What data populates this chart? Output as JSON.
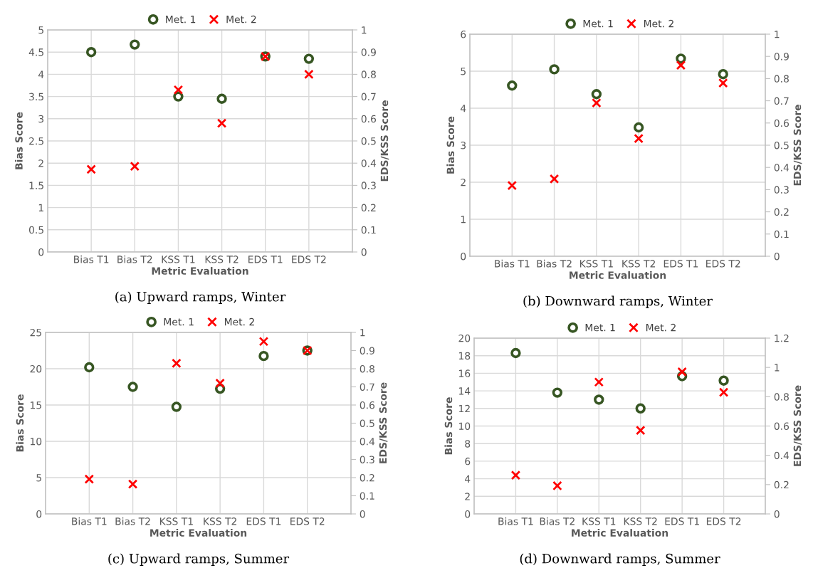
{
  "chart_data": [
    {
      "type": "scatter",
      "categories": [
        "Bias T1",
        "Bias T2",
        "KSS T1",
        "KSS T2",
        "EDS T1",
        "EDS T2"
      ],
      "xlabel": "Metric Evaluation",
      "ylabel": "Bias Score",
      "y2label": "EDS/KSS Score",
      "ylim": [
        0,
        5
      ],
      "yticks": [
        0,
        0.5,
        1,
        1.5,
        2,
        2.5,
        3,
        3.5,
        4,
        4.5,
        5
      ],
      "y2lim": [
        0,
        1
      ],
      "y2ticks": [
        0,
        0.1,
        0.2,
        0.3,
        0.4,
        0.5,
        0.6,
        0.7,
        0.8,
        0.9,
        1
      ],
      "grid": true,
      "legend": "top",
      "annotations": [
        "(a) Upward ramps, Winter"
      ],
      "series": [
        {
          "name": "Met. 1",
          "color": "#375623",
          "marker": "circle",
          "values": [
            4.5,
            4.67,
            null,
            null,
            null,
            null
          ]
        },
        {
          "name": "Met. 2",
          "color": "#ff0000",
          "marker": "cross",
          "values": [
            1.86,
            1.93,
            null,
            null,
            null,
            null
          ]
        },
        {
          "color": "#375623",
          "marker": "circle",
          "axis": "y2",
          "values": [
            null,
            null,
            0.7,
            0.69,
            0.88,
            0.87
          ]
        },
        {
          "color": "#ff0000",
          "marker": "cross",
          "axis": "y2",
          "values": [
            null,
            null,
            0.73,
            0.58,
            0.88,
            0.8
          ]
        }
      ]
    },
    {
      "type": "scatter",
      "categories": [
        "Bias T1",
        "Bias T2",
        "KSS T1",
        "KSS T2",
        "EDS T1",
        "EDS T2"
      ],
      "xlabel": "Metric Evaluation",
      "ylabel": "Bias Score",
      "y2label": "EDS/KSS Score",
      "ylim": [
        0,
        6
      ],
      "yticks": [
        0,
        1,
        2,
        3,
        4,
        5,
        6
      ],
      "y2lim": [
        0,
        1
      ],
      "y2ticks": [
        0,
        0.1,
        0.2,
        0.3,
        0.4,
        0.5,
        0.6,
        0.7,
        0.8,
        0.9,
        1
      ],
      "grid": true,
      "legend": "top",
      "annotations": [
        "(b) Downward ramps, Winter"
      ],
      "series": [
        {
          "name": "Met. 1",
          "color": "#375623",
          "marker": "circle",
          "values": [
            4.61,
            5.05,
            null,
            null,
            null,
            null
          ]
        },
        {
          "name": "Met. 2",
          "color": "#ff0000",
          "marker": "cross",
          "values": [
            1.91,
            2.09,
            null,
            null,
            null,
            null
          ]
        },
        {
          "color": "#375623",
          "marker": "circle",
          "axis": "y2",
          "values": [
            null,
            null,
            0.73,
            0.58,
            0.89,
            0.82
          ]
        },
        {
          "color": "#ff0000",
          "marker": "cross",
          "axis": "y2",
          "values": [
            null,
            null,
            0.69,
            0.53,
            0.86,
            0.78
          ]
        }
      ]
    },
    {
      "type": "scatter",
      "categories": [
        "Bias T1",
        "Bias T2",
        "KSS T1",
        "KSS T2",
        "EDS T1",
        "EDS T2"
      ],
      "xlabel": "Metric Evaluation",
      "ylabel": "Bias Score",
      "y2label": "EDS/KSS Score",
      "ylim": [
        0,
        25
      ],
      "yticks": [
        0,
        5,
        10,
        15,
        20,
        25
      ],
      "y2lim": [
        0,
        1
      ],
      "y2ticks": [
        0,
        0.1,
        0.2,
        0.3,
        0.4,
        0.5,
        0.6,
        0.7,
        0.8,
        0.9,
        1
      ],
      "grid": true,
      "legend": "top",
      "annotations": [
        "(c) Upward ramps, Summer"
      ],
      "series": [
        {
          "name": "Met. 1",
          "color": "#375623",
          "marker": "circle",
          "values": [
            20.2,
            17.5,
            null,
            null,
            null,
            null
          ]
        },
        {
          "name": "Met. 2",
          "color": "#ff0000",
          "marker": "cross",
          "values": [
            4.8,
            4.1,
            null,
            null,
            null,
            null
          ]
        },
        {
          "color": "#375623",
          "marker": "circle",
          "axis": "y2",
          "values": [
            null,
            null,
            0.59,
            0.69,
            0.87,
            0.9
          ]
        },
        {
          "color": "#ff0000",
          "marker": "cross",
          "axis": "y2",
          "values": [
            null,
            null,
            0.83,
            0.72,
            0.95,
            0.9
          ]
        }
      ]
    },
    {
      "type": "scatter",
      "categories": [
        "Bias T1",
        "Bias T2",
        "KSS T1",
        "KSS T2",
        "EDS T1",
        "EDS T2"
      ],
      "xlabel": "Metric Evaluation",
      "ylabel": "Bias Score",
      "y2label": "EDS/KSS Score",
      "ylim": [
        0,
        20
      ],
      "yticks": [
        0,
        2,
        4,
        6,
        8,
        10,
        12,
        14,
        16,
        18,
        20
      ],
      "y2lim": [
        0,
        1.2
      ],
      "y2ticks": [
        0,
        0.2,
        0.4,
        0.6,
        0.8,
        1,
        1.2
      ],
      "grid": true,
      "legend": "top",
      "annotations": [
        "(d) Downward ramps, Summer"
      ],
      "series": [
        {
          "name": "Met. 1",
          "color": "#375623",
          "marker": "circle",
          "values": [
            18.3,
            13.8,
            null,
            null,
            null,
            null
          ]
        },
        {
          "name": "Met. 2",
          "color": "#ff0000",
          "marker": "cross",
          "values": [
            4.4,
            3.2,
            null,
            null,
            null,
            null
          ]
        },
        {
          "color": "#375623",
          "marker": "circle",
          "axis": "y2",
          "values": [
            null,
            null,
            0.78,
            0.72,
            0.94,
            0.91
          ]
        },
        {
          "color": "#ff0000",
          "marker": "cross",
          "axis": "y2",
          "values": [
            null,
            null,
            0.9,
            0.57,
            0.97,
            0.83
          ]
        }
      ]
    }
  ]
}
